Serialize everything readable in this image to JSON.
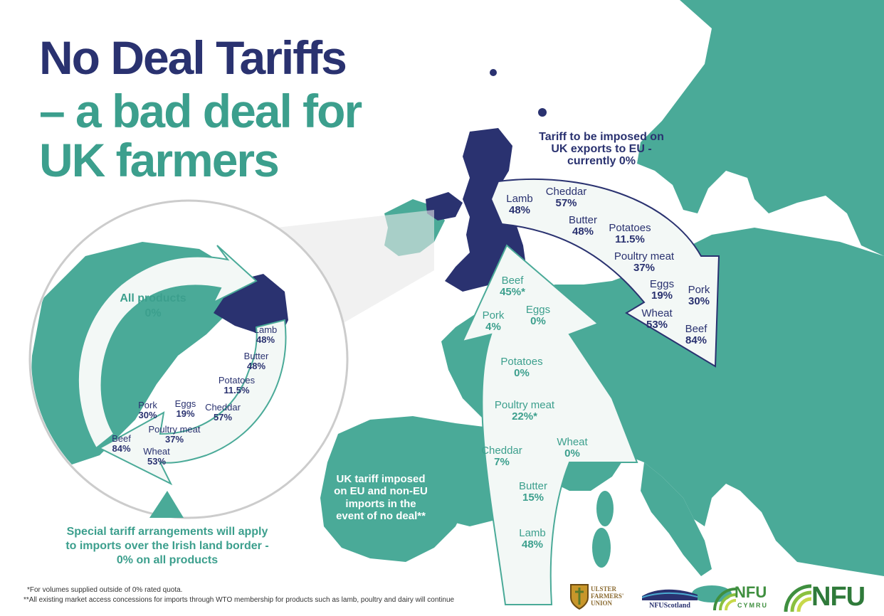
{
  "title": {
    "line1": "No Deal Tariffs",
    "line2a": "– a bad deal for",
    "line2b": "UK farmers"
  },
  "exports": {
    "heading": [
      "Tariff to be imposed on",
      "UK exports to EU -",
      "currently 0%"
    ],
    "items": [
      {
        "label": "Lamb",
        "value": "48%"
      },
      {
        "label": "Cheddar",
        "value": "57%"
      },
      {
        "label": "Butter",
        "value": "48%"
      },
      {
        "label": "Potatoes",
        "value": "11.5%"
      },
      {
        "label": "Poultry meat",
        "value": "37%"
      },
      {
        "label": "Eggs",
        "value": "19%"
      },
      {
        "label": "Pork",
        "value": "30%"
      },
      {
        "label": "Wheat",
        "value": "53%"
      },
      {
        "label": "Beef",
        "value": "84%"
      }
    ]
  },
  "imports": {
    "heading": [
      "UK tariff imposed",
      "on EU and non-EU",
      "imports in the",
      "event of no deal**"
    ],
    "items": [
      {
        "label": "Beef",
        "value": "45%*"
      },
      {
        "label": "Pork",
        "value": "4%"
      },
      {
        "label": "Eggs",
        "value": "0%"
      },
      {
        "label": "Potatoes",
        "value": "0%"
      },
      {
        "label": "Poultry meat",
        "value": "22%*"
      },
      {
        "label": "Cheddar",
        "value": "7%"
      },
      {
        "label": "Wheat",
        "value": "0%"
      },
      {
        "label": "Butter",
        "value": "15%"
      },
      {
        "label": "Lamb",
        "value": "48%"
      }
    ]
  },
  "ireland": {
    "all_label": "All products",
    "all_value": "0%",
    "items": [
      {
        "label": "Lamb",
        "value": "48%"
      },
      {
        "label": "Butter",
        "value": "48%"
      },
      {
        "label": "Potatoes",
        "value": "11.5%"
      },
      {
        "label": "Pork",
        "value": "30%"
      },
      {
        "label": "Eggs",
        "value": "19%"
      },
      {
        "label": "Cheddar",
        "value": "57%"
      },
      {
        "label": "Poultry meat",
        "value": "37%"
      },
      {
        "label": "Beef",
        "value": "84%"
      },
      {
        "label": "Wheat",
        "value": "53%"
      }
    ],
    "note": [
      "Special tariff arrangements will apply",
      "to imports over the Irish land border -",
      "0% on all products"
    ]
  },
  "footnotes": [
    "*For volumes supplied outside of 0% rated quota.",
    "**All existing market access concessions for imports through WTO membership for products such as lamb, poultry and dairy will continue"
  ],
  "logos": {
    "ulster": [
      "ULSTER",
      "FARMERS'",
      "UNION"
    ],
    "nfu_scotland": "NFUScotland",
    "nfu_cymru": [
      "NFU",
      "CYMRU"
    ],
    "nfu": "NFU"
  },
  "colors": {
    "navy": "#2a3270",
    "teal": "#4aaa98",
    "teal_text": "#3c9f8d",
    "arrow_fill": "#f3f8f6"
  }
}
